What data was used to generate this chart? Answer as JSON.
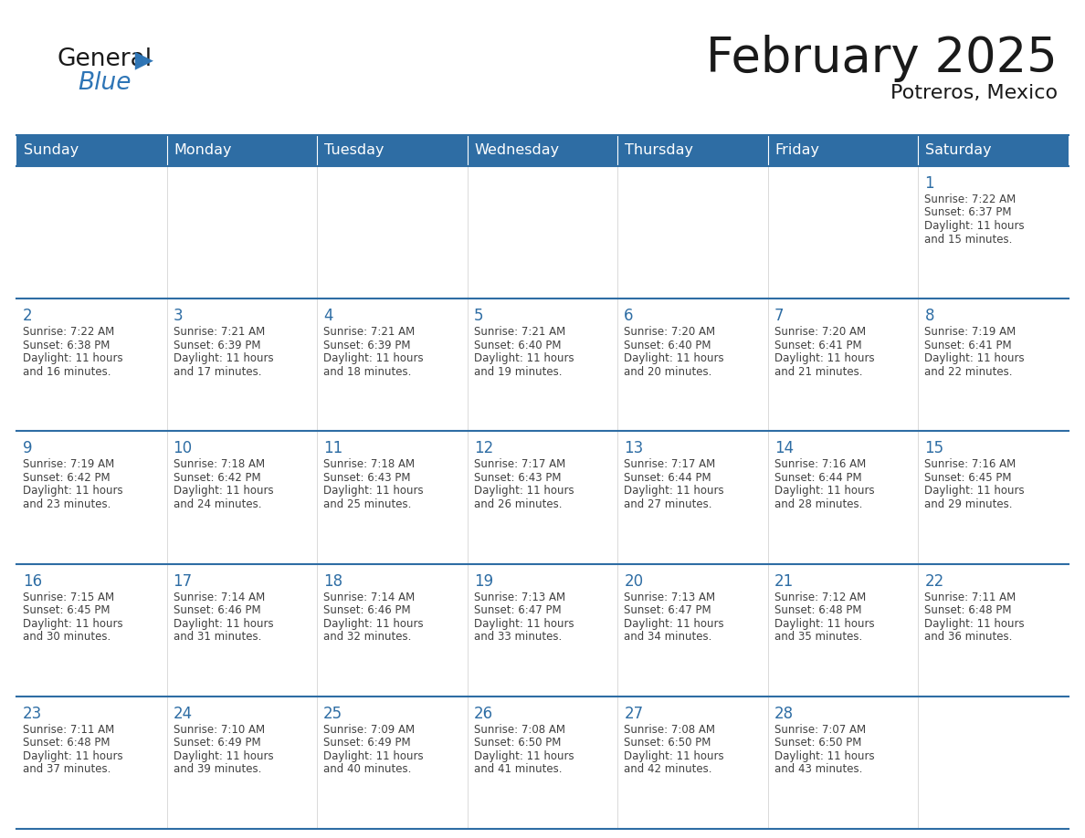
{
  "title": "February 2025",
  "subtitle": "Potreros, Mexico",
  "header_bg": "#2E6DA4",
  "header_text": "#FFFFFF",
  "cell_bg": "#FFFFFF",
  "day_number_color": "#2E6DA4",
  "info_text_color": "#404040",
  "border_color": "#2E6DA4",
  "days_of_week": [
    "Sunday",
    "Monday",
    "Tuesday",
    "Wednesday",
    "Thursday",
    "Friday",
    "Saturday"
  ],
  "weeks": [
    [
      null,
      null,
      null,
      null,
      null,
      null,
      {
        "day": "1",
        "sunrise": "7:22 AM",
        "sunset": "6:37 PM",
        "daylight": "11 hours and 15 minutes."
      }
    ],
    [
      {
        "day": "2",
        "sunrise": "7:22 AM",
        "sunset": "6:38 PM",
        "daylight": "11 hours and 16 minutes."
      },
      {
        "day": "3",
        "sunrise": "7:21 AM",
        "sunset": "6:39 PM",
        "daylight": "11 hours and 17 minutes."
      },
      {
        "day": "4",
        "sunrise": "7:21 AM",
        "sunset": "6:39 PM",
        "daylight": "11 hours and 18 minutes."
      },
      {
        "day": "5",
        "sunrise": "7:21 AM",
        "sunset": "6:40 PM",
        "daylight": "11 hours and 19 minutes."
      },
      {
        "day": "6",
        "sunrise": "7:20 AM",
        "sunset": "6:40 PM",
        "daylight": "11 hours and 20 minutes."
      },
      {
        "day": "7",
        "sunrise": "7:20 AM",
        "sunset": "6:41 PM",
        "daylight": "11 hours and 21 minutes."
      },
      {
        "day": "8",
        "sunrise": "7:19 AM",
        "sunset": "6:41 PM",
        "daylight": "11 hours and 22 minutes."
      }
    ],
    [
      {
        "day": "9",
        "sunrise": "7:19 AM",
        "sunset": "6:42 PM",
        "daylight": "11 hours and 23 minutes."
      },
      {
        "day": "10",
        "sunrise": "7:18 AM",
        "sunset": "6:42 PM",
        "daylight": "11 hours and 24 minutes."
      },
      {
        "day": "11",
        "sunrise": "7:18 AM",
        "sunset": "6:43 PM",
        "daylight": "11 hours and 25 minutes."
      },
      {
        "day": "12",
        "sunrise": "7:17 AM",
        "sunset": "6:43 PM",
        "daylight": "11 hours and 26 minutes."
      },
      {
        "day": "13",
        "sunrise": "7:17 AM",
        "sunset": "6:44 PM",
        "daylight": "11 hours and 27 minutes."
      },
      {
        "day": "14",
        "sunrise": "7:16 AM",
        "sunset": "6:44 PM",
        "daylight": "11 hours and 28 minutes."
      },
      {
        "day": "15",
        "sunrise": "7:16 AM",
        "sunset": "6:45 PM",
        "daylight": "11 hours and 29 minutes."
      }
    ],
    [
      {
        "day": "16",
        "sunrise": "7:15 AM",
        "sunset": "6:45 PM",
        "daylight": "11 hours and 30 minutes."
      },
      {
        "day": "17",
        "sunrise": "7:14 AM",
        "sunset": "6:46 PM",
        "daylight": "11 hours and 31 minutes."
      },
      {
        "day": "18",
        "sunrise": "7:14 AM",
        "sunset": "6:46 PM",
        "daylight": "11 hours and 32 minutes."
      },
      {
        "day": "19",
        "sunrise": "7:13 AM",
        "sunset": "6:47 PM",
        "daylight": "11 hours and 33 minutes."
      },
      {
        "day": "20",
        "sunrise": "7:13 AM",
        "sunset": "6:47 PM",
        "daylight": "11 hours and 34 minutes."
      },
      {
        "day": "21",
        "sunrise": "7:12 AM",
        "sunset": "6:48 PM",
        "daylight": "11 hours and 35 minutes."
      },
      {
        "day": "22",
        "sunrise": "7:11 AM",
        "sunset": "6:48 PM",
        "daylight": "11 hours and 36 minutes."
      }
    ],
    [
      {
        "day": "23",
        "sunrise": "7:11 AM",
        "sunset": "6:48 PM",
        "daylight": "11 hours and 37 minutes."
      },
      {
        "day": "24",
        "sunrise": "7:10 AM",
        "sunset": "6:49 PM",
        "daylight": "11 hours and 39 minutes."
      },
      {
        "day": "25",
        "sunrise": "7:09 AM",
        "sunset": "6:49 PM",
        "daylight": "11 hours and 40 minutes."
      },
      {
        "day": "26",
        "sunrise": "7:08 AM",
        "sunset": "6:50 PM",
        "daylight": "11 hours and 41 minutes."
      },
      {
        "day": "27",
        "sunrise": "7:08 AM",
        "sunset": "6:50 PM",
        "daylight": "11 hours and 42 minutes."
      },
      {
        "day": "28",
        "sunrise": "7:07 AM",
        "sunset": "6:50 PM",
        "daylight": "11 hours and 43 minutes."
      },
      null
    ]
  ]
}
